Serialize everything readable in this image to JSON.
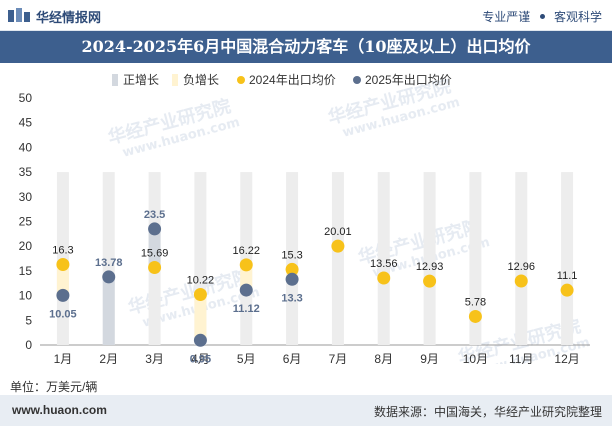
{
  "header": {
    "brand": "华经情报网",
    "slogan_left": "专业严谨",
    "slogan_right": "客观科学"
  },
  "title": "2024-2025年6月中国混合动力客车（10座及以上）出口均价",
  "unit": "单位：万美元/辆",
  "footer": {
    "website": "www.huaon.com",
    "source": "数据来源：中国海关，华经产业研究院整理"
  },
  "watermark": {
    "text_cn": "华经产业研究院",
    "text_en": "www.huaon.com"
  },
  "colors": {
    "positive_bar": "#dcdcdc",
    "series_2024": "#f7c21a",
    "series_2025": "#5c6f8e",
    "title_bg": "#3d5f8e"
  },
  "chart_data": {
    "type": "bar",
    "categories": [
      "1月",
      "2月",
      "3月",
      "4月",
      "5月",
      "6月",
      "7月",
      "8月",
      "9月",
      "10月",
      "11月",
      "12月"
    ],
    "ylim": [
      0,
      50
    ],
    "yticks": [
      0,
      5,
      10,
      15,
      20,
      25,
      30,
      35,
      40,
      45,
      50
    ],
    "legend": [
      "正增长",
      "负增长",
      "2024年出口均价",
      "2025年出口均价"
    ],
    "legend_position": "top",
    "series": [
      {
        "name": "2024年出口均价",
        "type": "scatter",
        "values": [
          16.3,
          null,
          15.69,
          10.22,
          16.22,
          15.3,
          20.01,
          13.56,
          12.93,
          5.78,
          12.96,
          11.1
        ]
      },
      {
        "name": "2025年出口均价",
        "type": "scatter",
        "values": [
          10.05,
          13.78,
          23.5,
          0.95,
          11.12,
          13.3,
          null,
          null,
          null,
          null,
          null,
          null
        ]
      }
    ],
    "growth_bars": {
      "positive": [
        false,
        true,
        true,
        false,
        false,
        false,
        false,
        false,
        false,
        false,
        false,
        false
      ],
      "negative": [
        true,
        false,
        false,
        true,
        true,
        true,
        false,
        false,
        false,
        false,
        false,
        false
      ]
    },
    "data_labels": {
      "2024": [
        "16.3",
        "",
        "15.69",
        "10.22",
        "16.22",
        "15.3",
        "20.01",
        "13.56",
        "12.93",
        "5.78",
        "12.96",
        "11.1"
      ],
      "2025": [
        "10.05",
        "13.78",
        "23.5",
        "0.95",
        "11.12",
        "13.3",
        "",
        "",
        "",
        "",
        "",
        ""
      ]
    }
  }
}
